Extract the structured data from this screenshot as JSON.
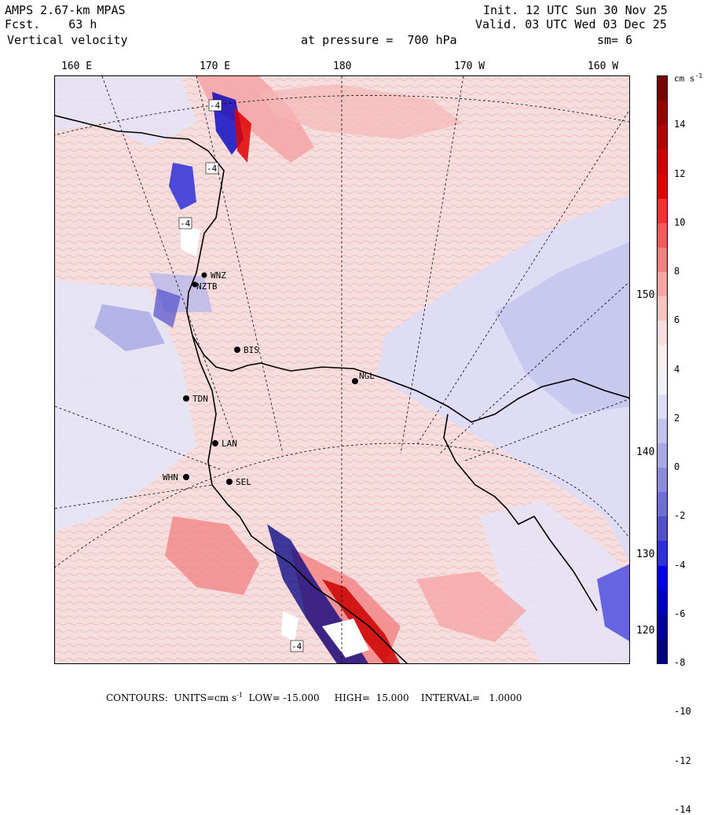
{
  "header": {
    "model": "AMPS 2.67-km MPAS",
    "forecast": "Fcst.    63 h",
    "field": "Vertical velocity",
    "init": "Init. 12 UTC Sun 30 Nov 25",
    "valid": "Valid. 03 UTC Wed 03 Dec 25",
    "pressure": "at pressure =  700 hPa",
    "smoothing": "sm= 6"
  },
  "longitude_labels": [
    "160 E",
    "170 E",
    "180",
    "170 W",
    "160 W"
  ],
  "latitude_labels": [
    "150 W",
    "140 W",
    "130 W",
    "120 W"
  ],
  "stations": [
    "WNZ",
    "NZTB",
    "BIS",
    "NGL",
    "TDN",
    "LAN",
    "WHN",
    "SEL"
  ],
  "contour_labels": [
    "-4",
    "-4",
    "-4",
    "-4"
  ],
  "colorbar": {
    "unit": "cm s",
    "unit_exp": "-1",
    "ticks": [
      "14",
      "12",
      "10",
      "8",
      "6",
      "4",
      "2",
      "0",
      "-2",
      "-4",
      "-6",
      "-8",
      "-10",
      "-12",
      "-14"
    ],
    "colors": [
      "#7a0000",
      "#990000",
      "#b40000",
      "#cc0000",
      "#e00000",
      "#f03232",
      "#f55a5a",
      "#f28080",
      "#f5a3a3",
      "#f7c4c4",
      "#f8dede",
      "#fbeeee",
      "#f0f0fa",
      "#dcdcf5",
      "#c3c3ee",
      "#a8a8e5",
      "#8c8cdc",
      "#6e6ed4",
      "#5050cc",
      "#2f2fd8",
      "#0000e6",
      "#0000c0",
      "#0000a0",
      "#000080"
    ]
  },
  "footer": {
    "prefix": "CONTOURS:  UNITS=cm s",
    "unit_exp": "-1",
    "rest": "  LOW= -15.000     HIGH=  15.000    INTERVAL=   1.0000"
  }
}
